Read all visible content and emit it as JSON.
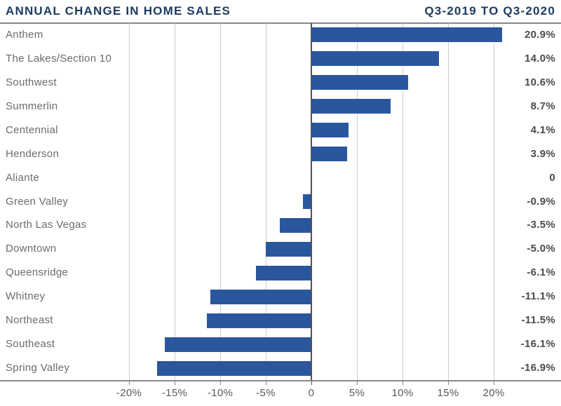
{
  "header": {
    "title": "ANNUAL CHANGE IN HOME SALES",
    "period": "Q3-2019 TO Q3-2020"
  },
  "chart_data": {
    "type": "bar",
    "orientation": "horizontal",
    "title": "ANNUAL CHANGE IN HOME SALES",
    "subtitle": "Q3-2019 TO Q3-2020",
    "categories": [
      "Anthem",
      "The Lakes/Section 10",
      "Southwest",
      "Summerlin",
      "Centennial",
      "Henderson",
      "Aliante",
      "Green Valley",
      "North Las Vegas",
      "Downtown",
      "Queensridge",
      "Whitney",
      "Northeast",
      "Southeast",
      "Spring Valley"
    ],
    "values": [
      20.9,
      14.0,
      10.6,
      8.7,
      4.1,
      3.9,
      0,
      -0.9,
      -3.5,
      -5.0,
      -6.1,
      -11.1,
      -11.5,
      -16.1,
      -16.9
    ],
    "value_labels": [
      "20.9%",
      "14.0%",
      "10.6%",
      "8.7%",
      "4.1%",
      "3.9%",
      "0",
      "-0.9%",
      "-3.5%",
      "-5.0%",
      "-6.1%",
      "-11.1%",
      "-11.5%",
      "-16.1%",
      "-16.9%"
    ],
    "xlabel": "",
    "ylabel": "",
    "x_ticks": [
      -20,
      -15,
      -10,
      -5,
      0,
      5,
      10,
      15,
      20
    ],
    "x_tick_labels": [
      "-20%",
      "-15%",
      "-10%",
      "-5%",
      "0",
      "5%",
      "10%",
      "15%",
      "20%"
    ],
    "xlim": [
      -20,
      20
    ],
    "grid": true,
    "legend": "none",
    "colors": {
      "bar": "#2A569D",
      "title": "#1B3A5F",
      "category_label": "#6A6B6D",
      "value_label": "#4A4B4D",
      "tick_label": "#58595B",
      "gridline": "#CBCCCE",
      "zero_line": "#515254",
      "axis_line": "#85878A",
      "background": "#FFFFFF"
    }
  }
}
